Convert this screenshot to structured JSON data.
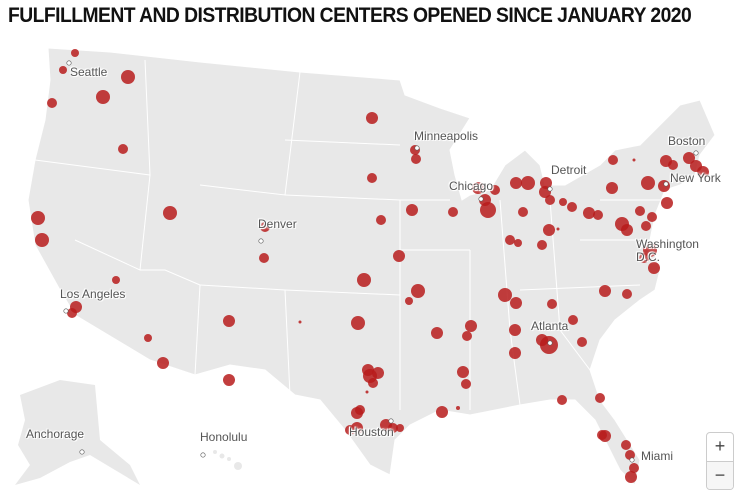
{
  "title": "FULFILLMENT AND DISTRIBUTION CENTERS OPENED SINCE JANUARY 2020",
  "marker_color": "#b71c1c",
  "land_color": "#e8e8e8",
  "cities": [
    {
      "id": "seattle",
      "label": "Seattle"
    },
    {
      "id": "minneapolis",
      "label": "Minneapolis"
    },
    {
      "id": "chicago",
      "label": "Chicago"
    },
    {
      "id": "detroit",
      "label": "Detroit"
    },
    {
      "id": "boston",
      "label": "Boston"
    },
    {
      "id": "new-york",
      "label": "New York"
    },
    {
      "id": "washington",
      "label": "Washington D.C."
    },
    {
      "id": "denver",
      "label": "Denver"
    },
    {
      "id": "los-angeles",
      "label": "Los Angeles"
    },
    {
      "id": "atlanta",
      "label": "Atlanta"
    },
    {
      "id": "houston",
      "label": "Houston"
    },
    {
      "id": "miami",
      "label": "Miami"
    },
    {
      "id": "anchorage",
      "label": "Anchorage"
    },
    {
      "id": "honolulu",
      "label": "Honolulu"
    }
  ],
  "zoom": {
    "in_label": "+",
    "out_label": "−"
  }
}
